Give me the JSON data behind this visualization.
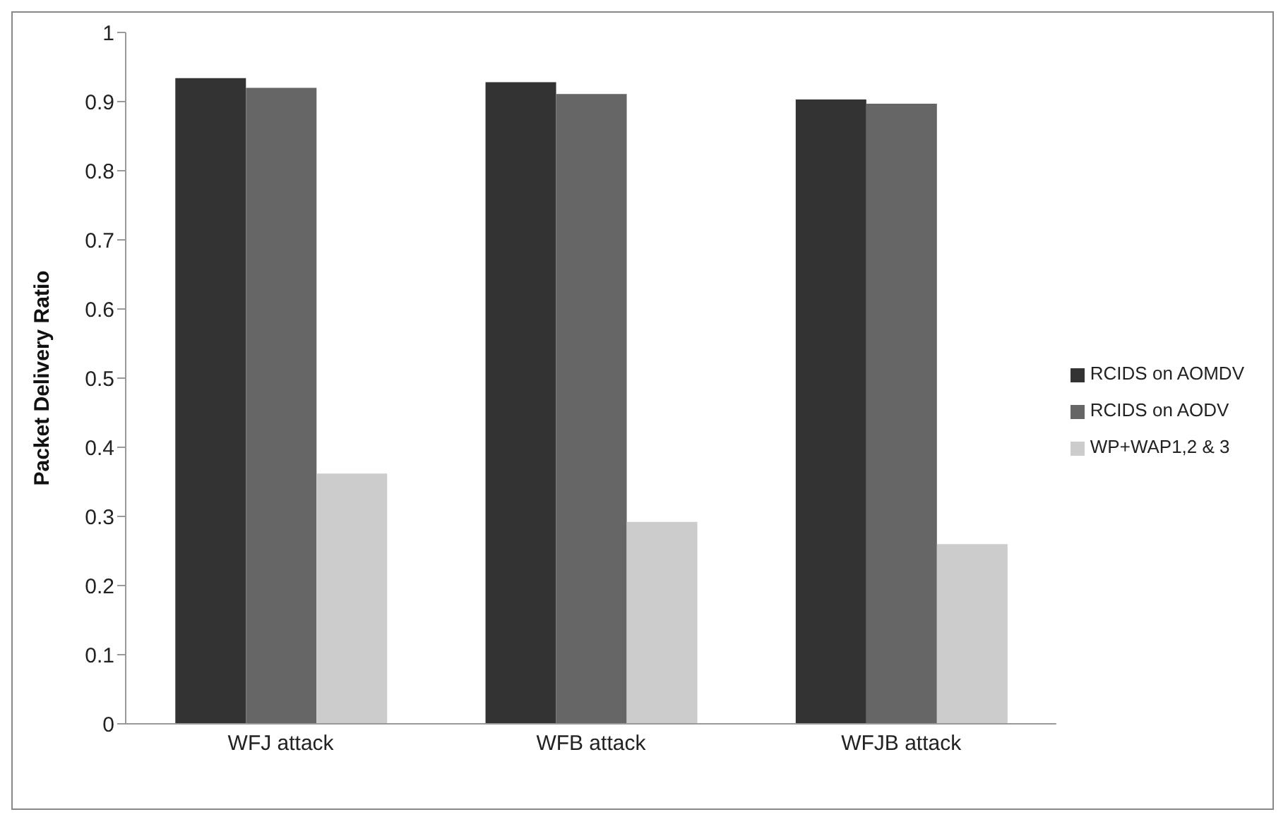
{
  "chart_data": {
    "type": "bar",
    "ylabel": "Packet Delivery Ratio",
    "categories": [
      "WFJ attack",
      "WFB attack",
      "WFJB attack"
    ],
    "series": [
      {
        "name": "RCIDS on AOMDV",
        "color": "#333333",
        "values": [
          0.934,
          0.928,
          0.903
        ]
      },
      {
        "name": "RCIDS on AODV",
        "color": "#666666",
        "values": [
          0.92,
          0.911,
          0.897
        ]
      },
      {
        "name": "WP+WAP1,2 & 3",
        "color": "#cccccc",
        "values": [
          0.362,
          0.292,
          0.26
        ]
      }
    ],
    "ylim": [
      0,
      1
    ],
    "yticks": [
      0,
      0.1,
      0.2,
      0.3,
      0.4,
      0.5,
      0.6,
      0.7,
      0.8,
      0.9,
      1
    ],
    "grid": false,
    "legend": "right"
  }
}
